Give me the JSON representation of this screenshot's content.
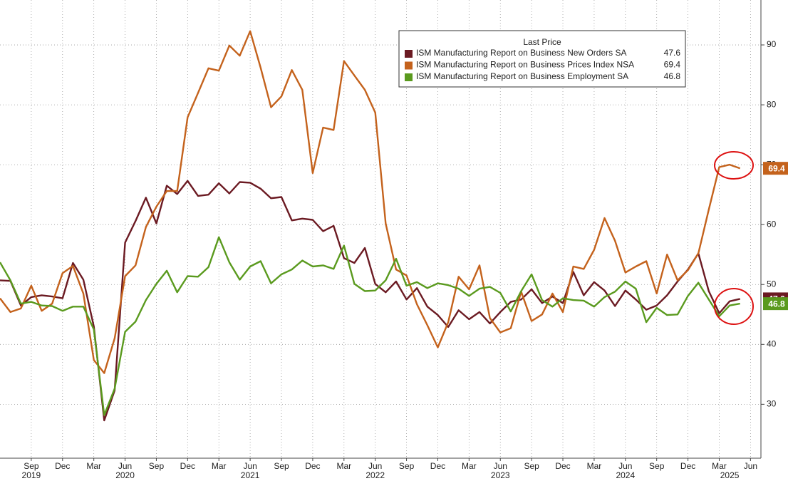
{
  "chart_data": {
    "type": "line",
    "x": [
      "2019-06",
      "2019-07",
      "2019-08",
      "2019-09",
      "2019-10",
      "2019-11",
      "2019-12",
      "2020-01",
      "2020-02",
      "2020-03",
      "2020-04",
      "2020-05",
      "2020-06",
      "2020-07",
      "2020-08",
      "2020-09",
      "2020-10",
      "2020-11",
      "2020-12",
      "2021-01",
      "2021-02",
      "2021-03",
      "2021-04",
      "2021-05",
      "2021-06",
      "2021-07",
      "2021-08",
      "2021-09",
      "2021-10",
      "2021-11",
      "2021-12",
      "2022-01",
      "2022-02",
      "2022-03",
      "2022-04",
      "2022-05",
      "2022-06",
      "2022-07",
      "2022-08",
      "2022-09",
      "2022-10",
      "2022-11",
      "2022-12",
      "2023-01",
      "2023-02",
      "2023-03",
      "2023-04",
      "2023-05",
      "2023-06",
      "2023-07",
      "2023-08",
      "2023-09",
      "2023-10",
      "2023-11",
      "2023-12",
      "2024-01",
      "2024-02",
      "2024-03",
      "2024-04",
      "2024-05",
      "2024-06",
      "2024-07",
      "2024-08",
      "2024-09",
      "2024-10",
      "2024-11",
      "2024-12",
      "2025-01",
      "2025-02",
      "2025-03",
      "2025-04",
      "2025-05"
    ],
    "legend_title": "Last Price",
    "series": [
      {
        "name": "ISM Manufacturing Report on Business New Orders SA",
        "color": "#6b1a22",
        "values": [
          50.7,
          50.6,
          46.5,
          47.9,
          48.2,
          48.0,
          47.7,
          53.6,
          50.8,
          43.0,
          27.3,
          32.3,
          57.0,
          60.6,
          64.5,
          60.2,
          66.5,
          65.1,
          67.3,
          64.8,
          65.0,
          66.9,
          65.2,
          67.1,
          67.0,
          66.0,
          64.4,
          64.6,
          60.7,
          61.0,
          60.8,
          58.9,
          59.8,
          54.4,
          53.6,
          56.1,
          50.1,
          48.7,
          50.5,
          47.5,
          49.4,
          46.3,
          44.9,
          42.9,
          45.7,
          44.2,
          45.4,
          43.5,
          45.4,
          47.1,
          47.5,
          49.2,
          46.9,
          48.0,
          46.9,
          52.1,
          48.2,
          50.4,
          49.0,
          46.4,
          49.0,
          47.5,
          45.8,
          46.5,
          48.2,
          50.5,
          52.5,
          55.2,
          48.9,
          45.2,
          47.2,
          47.6
        ]
      },
      {
        "name": "ISM Manufacturing Report on Business Prices Index NSA",
        "color": "#c4621c",
        "values": [
          47.7,
          45.4,
          46.0,
          49.8,
          45.6,
          46.8,
          51.9,
          53.1,
          48.5,
          37.4,
          35.2,
          41.0,
          51.4,
          53.2,
          59.6,
          63.0,
          65.6,
          65.6,
          77.9,
          82.0,
          86.1,
          85.7,
          89.9,
          88.2,
          92.3,
          86.2,
          79.6,
          81.4,
          85.8,
          82.5,
          68.6,
          76.2,
          75.8,
          87.3,
          84.9,
          82.5,
          78.7,
          60.2,
          52.5,
          51.5,
          46.7,
          43.2,
          39.5,
          43.7,
          51.3,
          49.2,
          53.2,
          44.4,
          42.0,
          42.7,
          48.8,
          43.9,
          45.0,
          48.5,
          45.4,
          53.0,
          52.6,
          55.8,
          61.1,
          57.3,
          52.0,
          53.0,
          53.9,
          48.5,
          55.0,
          50.7,
          52.4,
          55.2,
          62.5,
          69.6,
          70.0,
          69.4
        ]
      },
      {
        "name": "ISM Manufacturing Report on Business Employment SA",
        "color": "#5a9a1e",
        "values": [
          53.7,
          50.7,
          46.8,
          47.1,
          46.5,
          46.4,
          45.6,
          46.3,
          46.3,
          42.5,
          28.2,
          32.6,
          42.1,
          43.8,
          47.4,
          50.1,
          52.3,
          48.7,
          51.4,
          51.3,
          52.9,
          57.9,
          53.7,
          50.8,
          53.0,
          53.9,
          50.2,
          51.7,
          52.5,
          54.0,
          53.0,
          53.2,
          52.6,
          56.5,
          50.1,
          48.9,
          49.0,
          50.7,
          54.3,
          49.8,
          50.4,
          49.4,
          50.2,
          49.9,
          49.3,
          48.1,
          49.3,
          49.6,
          48.6,
          45.5,
          48.9,
          51.7,
          47.4,
          46.3,
          47.7,
          47.4,
          47.3,
          46.3,
          47.9,
          48.8,
          50.5,
          49.3,
          43.7,
          46.1,
          44.9,
          45.0,
          48.1,
          50.3,
          47.5,
          44.7,
          46.5,
          46.8
        ]
      }
    ],
    "xlim": [
      "2019-06",
      "2025-07"
    ],
    "xticks": [
      {
        "value": "2019-09",
        "label": "Sep"
      },
      {
        "value": "2019-12",
        "label": "Dec"
      },
      {
        "value": "2020-03",
        "label": "Mar"
      },
      {
        "value": "2020-06",
        "label": "Jun"
      },
      {
        "value": "2020-09",
        "label": "Sep"
      },
      {
        "value": "2020-12",
        "label": "Dec"
      },
      {
        "value": "2021-03",
        "label": "Mar"
      },
      {
        "value": "2021-06",
        "label": "Jun"
      },
      {
        "value": "2021-09",
        "label": "Sep"
      },
      {
        "value": "2021-12",
        "label": "Dec"
      },
      {
        "value": "2022-03",
        "label": "Mar"
      },
      {
        "value": "2022-06",
        "label": "Jun"
      },
      {
        "value": "2022-09",
        "label": "Sep"
      },
      {
        "value": "2022-12",
        "label": "Dec"
      },
      {
        "value": "2023-03",
        "label": "Mar"
      },
      {
        "value": "2023-06",
        "label": "Jun"
      },
      {
        "value": "2023-09",
        "label": "Sep"
      },
      {
        "value": "2023-12",
        "label": "Dec"
      },
      {
        "value": "2024-03",
        "label": "Mar"
      },
      {
        "value": "2024-06",
        "label": "Jun"
      },
      {
        "value": "2024-09",
        "label": "Sep"
      },
      {
        "value": "2024-12",
        "label": "Dec"
      },
      {
        "value": "2025-03",
        "label": "Mar"
      },
      {
        "value": "2025-06",
        "label": "Jun"
      }
    ],
    "x_year_labels": [
      {
        "value": "2019-09",
        "label": "2019"
      },
      {
        "value": "2020-06",
        "label": "2020"
      },
      {
        "value": "2021-06",
        "label": "2021"
      },
      {
        "value": "2022-06",
        "label": "2022"
      },
      {
        "value": "2023-06",
        "label": "2023"
      },
      {
        "value": "2024-06",
        "label": "2024"
      },
      {
        "value": "2025-04",
        "label": "2025"
      }
    ],
    "ylim": [
      21,
      97.5
    ],
    "yticks": [
      30,
      40,
      50,
      60,
      70,
      80,
      90
    ],
    "y_axis_side": "right",
    "grid": true
  }
}
